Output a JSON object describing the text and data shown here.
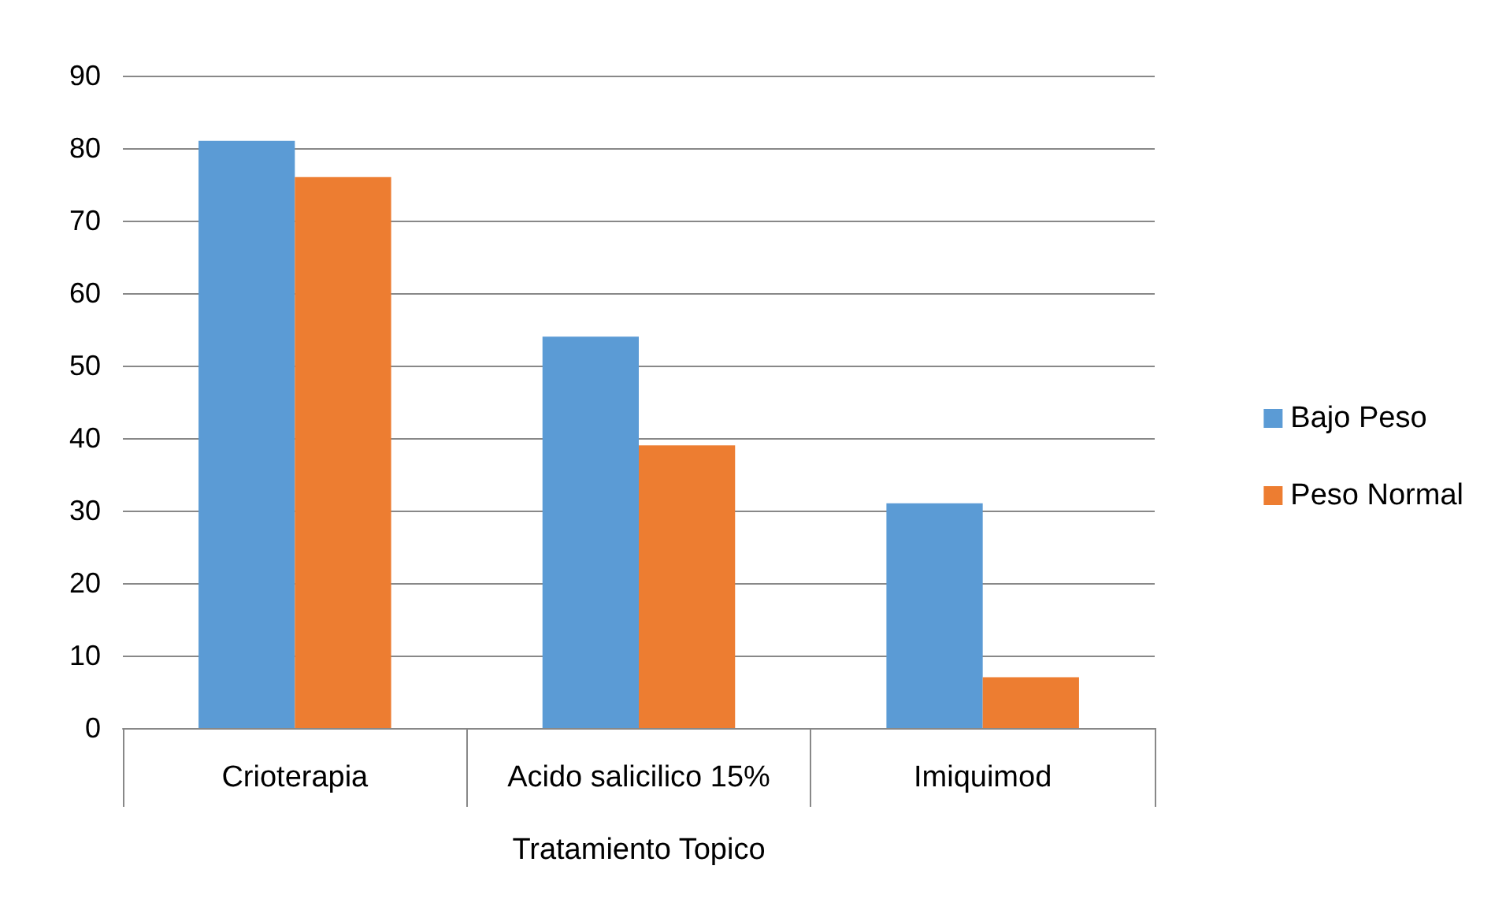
{
  "chart_data": {
    "type": "bar",
    "xlabel": "Tratamiento Topico",
    "categories": [
      "Crioterapia",
      "Acido salicilico 15%",
      "Imiquimod"
    ],
    "series": [
      {
        "name": "Bajo Peso",
        "color": "#5b9bd5",
        "values": [
          81,
          54,
          31
        ]
      },
      {
        "name": "Peso Normal",
        "color": "#ed7d31",
        "values": [
          76,
          39,
          7
        ]
      }
    ],
    "ylim": [
      0,
      90
    ],
    "yticks": [
      0,
      10,
      20,
      30,
      40,
      50,
      60,
      70,
      80,
      90
    ],
    "grid": "y",
    "legend": "right"
  }
}
